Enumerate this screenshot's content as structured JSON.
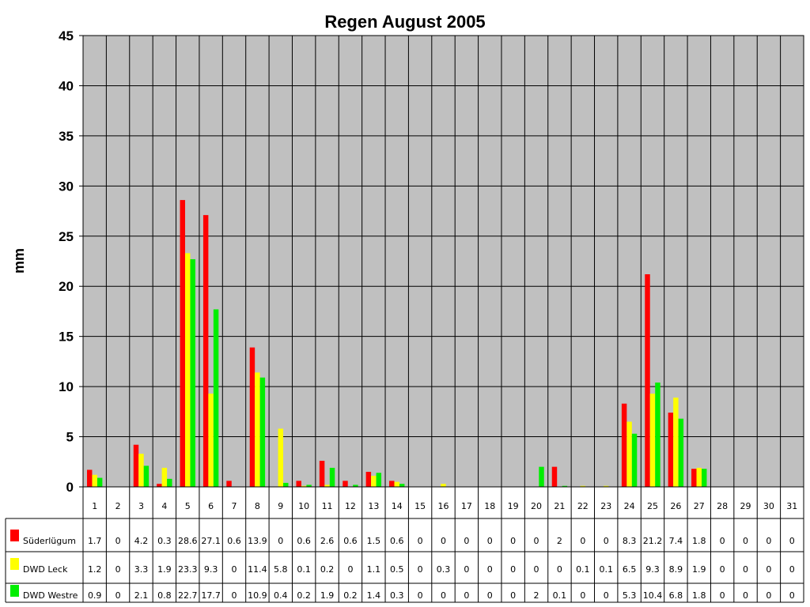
{
  "chart_data": {
    "type": "bar",
    "title": "Regen August 2005",
    "xlabel": "",
    "ylabel": "mm",
    "ylim": [
      0,
      45
    ],
    "yticks": [
      0,
      5,
      10,
      15,
      20,
      25,
      30,
      35,
      40,
      45
    ],
    "grid": true,
    "legend_placement": "bottom-left table",
    "categories": [
      "1",
      "2",
      "3",
      "4",
      "5",
      "6",
      "7",
      "8",
      "9",
      "10",
      "11",
      "12",
      "13",
      "14",
      "15",
      "16",
      "17",
      "18",
      "19",
      "20",
      "21",
      "22",
      "23",
      "24",
      "25",
      "26",
      "27",
      "28",
      "29",
      "30",
      "31"
    ],
    "series": [
      {
        "name": "Süderlügum",
        "color": "#ff0000",
        "values": [
          1.7,
          0,
          4.2,
          0.3,
          28.6,
          27.1,
          0.6,
          13.9,
          0,
          0.6,
          2.6,
          0.6,
          1.5,
          0.6,
          0,
          0,
          0,
          0,
          0,
          0,
          2,
          0,
          0,
          8.3,
          21.2,
          7.4,
          1.8,
          0,
          0,
          0,
          0
        ]
      },
      {
        "name": "DWD Leck",
        "color": "#ffff00",
        "values": [
          1.2,
          0,
          3.3,
          1.9,
          23.3,
          9.3,
          0,
          11.4,
          5.8,
          0.1,
          0.2,
          0,
          1.1,
          0.5,
          0,
          0.3,
          0,
          0,
          0,
          0,
          0,
          0.1,
          0.1,
          6.5,
          9.3,
          8.9,
          1.9,
          0,
          0,
          0,
          0
        ]
      },
      {
        "name": "DWD Westre",
        "color": "#00ee00",
        "values": [
          0.9,
          0,
          2.1,
          0.8,
          22.7,
          17.7,
          0,
          10.9,
          0.4,
          0.2,
          1.9,
          0.2,
          1.4,
          0.3,
          0,
          0,
          0,
          0,
          0,
          2,
          0.1,
          0,
          0,
          5.3,
          10.4,
          6.8,
          1.8,
          0,
          0,
          0,
          0
        ]
      }
    ],
    "plot_background": "#c0c0c0"
  }
}
